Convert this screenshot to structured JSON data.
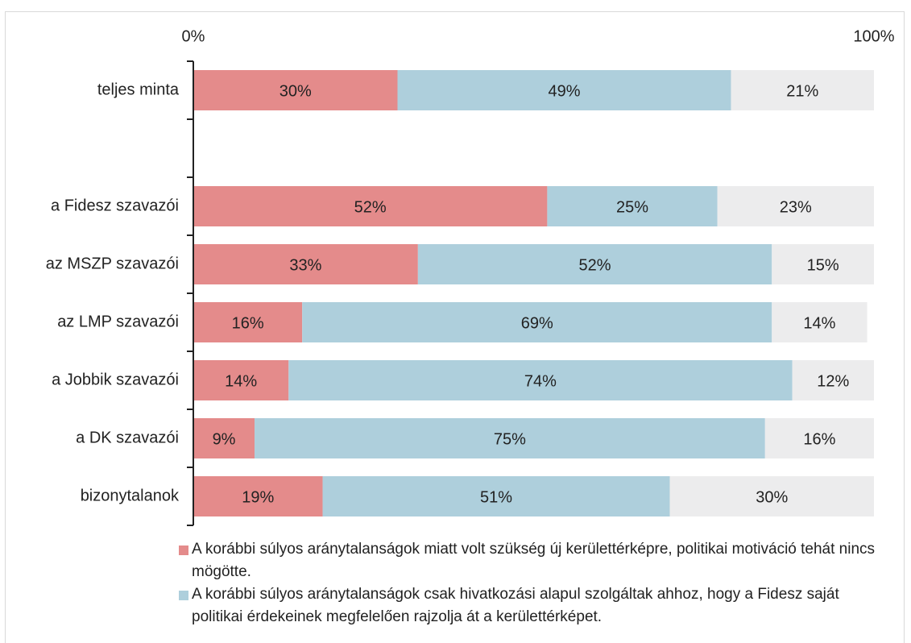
{
  "chart_data": {
    "type": "stacked-bar-horizontal",
    "categories": [
      "teljes minta",
      null,
      "a Fidesz szavazói",
      "az MSZP szavazói",
      "az LMP szavazói",
      "a Jobbik szavazói",
      "a DK szavazói",
      "bizonytalanok"
    ],
    "series": [
      {
        "name": "A korábbi súlyos aránytalanságok miatt volt szükség új kerülettérképre, politikai motiváció tehát nincs mögötte.",
        "color": "#e48b8b",
        "values": [
          30,
          null,
          52,
          33,
          16,
          14,
          9,
          19
        ],
        "value_labels": [
          "30%",
          null,
          "52%",
          "33%",
          "16%",
          "14%",
          "9%",
          "19%"
        ]
      },
      {
        "name": "A korábbi súlyos aránytalanságok csak hivatkozási alapul szolgáltak ahhoz, hogy a Fidesz saját politikai érdekeinek megfelelően rajzolja át a kerülettérképet.",
        "color": "#aecfdc",
        "values": [
          49,
          null,
          25,
          52,
          69,
          74,
          75,
          51
        ],
        "value_labels": [
          "49%",
          null,
          "25%",
          "52%",
          "69%",
          "74%",
          "75%",
          "51%"
        ]
      },
      {
        "color": "#ececed",
        "values": [
          21,
          null,
          23,
          15,
          14,
          12,
          16,
          30
        ],
        "value_labels": [
          "21%",
          null,
          "23%",
          "15%",
          "14%",
          "12%",
          "16%",
          "30%"
        ]
      }
    ],
    "xlim": [
      0,
      100
    ],
    "xticks": [
      {
        "value": 0,
        "label": "0%"
      },
      {
        "value": 100,
        "label": "100%"
      }
    ]
  }
}
